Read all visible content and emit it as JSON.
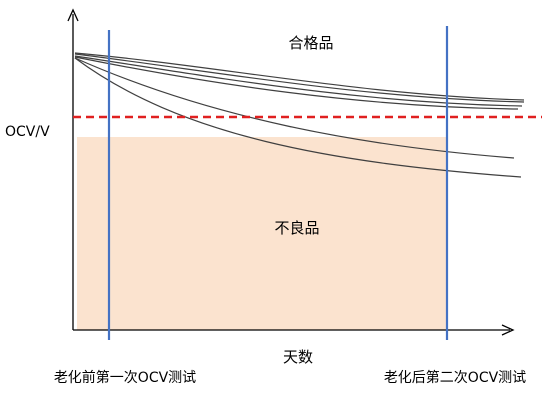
{
  "labels": {
    "y_axis": "OCV/V",
    "x_axis": "天数",
    "good_region": "合格品",
    "bad_region": "不良品",
    "first_test": "老化前第一次OCV测试",
    "second_test": "老化后第二次OCV测试"
  },
  "colors": {
    "axis": "#000000",
    "curve": "#404040",
    "test_line": "#4472c4",
    "threshold": "#e02020",
    "bad_region_fill": "#fbe3cf"
  }
}
